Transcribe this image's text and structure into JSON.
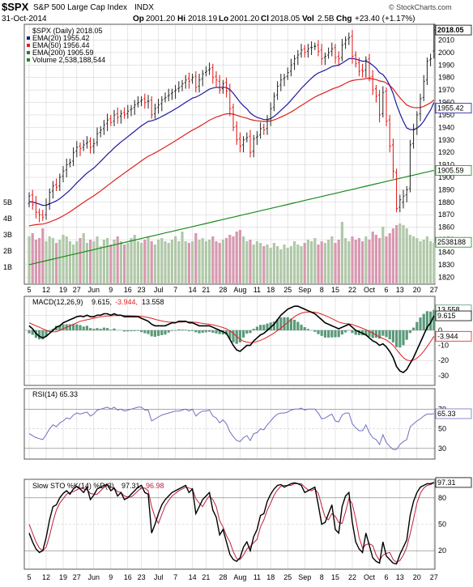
{
  "header": {
    "symbol": "$SPX",
    "name": "S&P 500 Large Cap Index",
    "exchange": "INDX",
    "date": "31-Oct-2014",
    "open_label": "Op",
    "open": "2001.20",
    "high_label": "Hi",
    "high": "2018.19",
    "low_label": "Lo",
    "low": "2001.20",
    "close_label": "Cl",
    "close": "2018.05",
    "vol_label": "Vol",
    "vol": "2.5B",
    "chg_label": "Chg",
    "chg": "+23.40 (+1.17%)",
    "brand": "© StockCharts.com"
  },
  "colors": {
    "up_bar": "#222222",
    "down_bar": "#e01010",
    "ema20": "#1a1aa0",
    "ema50": "#e02020",
    "ema200": "#1a8a1a",
    "vol_up": "#b0c8a8",
    "vol_down": "#d898b0",
    "hist": "#5a9a7a",
    "panel_border": "#555555",
    "grid": "#cccccc",
    "stoch_d": "#c02040",
    "rsi_line": "#7070c0"
  },
  "x_ticks": [
    "5",
    "12",
    "19",
    "27",
    "Jun",
    "9",
    "16",
    "23",
    "Jul",
    "7",
    "14",
    "21",
    "28",
    "Aug",
    "11",
    "18",
    "25",
    "Sep",
    "8",
    "15",
    "22",
    "Oct",
    "6",
    "13",
    "20",
    "27"
  ],
  "chart_data": [
    {
      "type": "ohlc",
      "title": "$SPX (Daily) 2018.05",
      "legend": [
        {
          "name": "EMA(20) 1955.42",
          "color": "#1a1aa0"
        },
        {
          "name": "EMA(50) 1956.44",
          "color": "#e02020"
        },
        {
          "name": "EMA(200) 1905.59",
          "color": "#1a8a1a"
        },
        {
          "name": "Volume 2,538,188,544",
          "color": "#1a8a1a"
        }
      ],
      "ylim": [
        1815,
        2022
      ],
      "yticks": [
        1820,
        1830,
        1840,
        1850,
        1860,
        1870,
        1880,
        1890,
        1900,
        1910,
        1920,
        1930,
        1940,
        1950,
        1960,
        1970,
        1980,
        1990,
        2000,
        2010
      ],
      "last_labels": [
        {
          "value": 2018.05,
          "text": "2018.05"
        },
        {
          "value": 1955.42,
          "text": "1955.42"
        },
        {
          "value": 1905.59,
          "text": "1905.59"
        }
      ],
      "close": [
        1885,
        1878,
        1872,
        1870,
        1868,
        1878,
        1888,
        1893,
        1892,
        1900,
        1905,
        1910,
        1912,
        1920,
        1924,
        1923,
        1926,
        1928,
        1924,
        1927,
        1935,
        1938,
        1942,
        1946,
        1944,
        1950,
        1948,
        1951,
        1950,
        1953,
        1955,
        1958,
        1960,
        1962,
        1960,
        1961,
        1950,
        1955,
        1958,
        1962,
        1964,
        1966,
        1968,
        1970,
        1972,
        1975,
        1978,
        1977,
        1980,
        1972,
        1978,
        1983,
        1985,
        1987,
        1980,
        1978,
        1970,
        1975,
        1969,
        1955,
        1940,
        1930,
        1925,
        1930,
        1932,
        1920,
        1931,
        1933,
        1939,
        1938,
        1946,
        1955,
        1965,
        1973,
        1978,
        1980,
        1984,
        1990,
        1995,
        1998,
        2002,
        2000,
        2003,
        2004,
        2005,
        2001,
        1995,
        1997,
        2000,
        2003,
        1996,
        1995,
        2006,
        2010,
        2012,
        1997,
        1991,
        1985,
        1985,
        1994,
        1980,
        1970,
        1965,
        1950,
        1968,
        1945,
        1925,
        1905,
        1875,
        1882,
        1885,
        1890,
        1926,
        1938,
        1950,
        1963,
        1977,
        1993,
        1995,
        2018.05
      ],
      "open": [
        1879,
        1886,
        1880,
        1872,
        1870,
        1870,
        1879,
        1889,
        1894,
        1893,
        1901,
        1906,
        1911,
        1913,
        1921,
        1925,
        1924,
        1927,
        1929,
        1925,
        1928,
        1936,
        1939,
        1943,
        1947,
        1945,
        1951,
        1949,
        1952,
        1951,
        1954,
        1956,
        1959,
        1961,
        1963,
        1961,
        1962,
        1951,
        1956,
        1959,
        1963,
        1965,
        1967,
        1969,
        1971,
        1973,
        1976,
        1979,
        1978,
        1981,
        1973,
        1979,
        1984,
        1986,
        1988,
        1981,
        1977,
        1971,
        1976,
        1970,
        1956,
        1941,
        1931,
        1926,
        1931,
        1933,
        1921,
        1932,
        1934,
        1940,
        1939,
        1947,
        1956,
        1966,
        1974,
        1979,
        1981,
        1985,
        1991,
        1996,
        1999,
        2003,
        2001,
        2004,
        2005,
        2006,
        2002,
        1996,
        1998,
        2001,
        2004,
        1997,
        1996,
        2007,
        2011,
        2013,
        1998,
        1992,
        1986,
        1986,
        1995,
        1981,
        1971,
        1966,
        1951,
        1969,
        1946,
        1926,
        1904,
        1876,
        1880,
        1886,
        1891,
        1927,
        1939,
        1951,
        1964,
        1978,
        1994,
        2001.2
      ],
      "volume_b": [
        2.9,
        3.1,
        2.7,
        2.8,
        3.4,
        2.6,
        2.9,
        2.8,
        2.5,
        2.7,
        3.0,
        2.9,
        2.6,
        2.4,
        2.6,
        2.8,
        3.1,
        2.5,
        2.7,
        2.6,
        2.9,
        2.3,
        2.7,
        2.8,
        2.4,
        2.7,
        2.9,
        2.6,
        2.4,
        2.5,
        2.8,
        3.0,
        2.6,
        2.5,
        2.7,
        2.9,
        2.6,
        2.4,
        2.7,
        2.8,
        2.6,
        2.5,
        2.7,
        2.9,
        2.6,
        3.2,
        2.6,
        2.5,
        2.6,
        3.1,
        2.7,
        2.8,
        2.6,
        2.7,
        2.9,
        2.6,
        2.5,
        2.7,
        2.8,
        3.0,
        2.9,
        3.2,
        3.3,
        2.9,
        2.6,
        2.7,
        2.4,
        2.6,
        2.5,
        2.3,
        2.4,
        2.2,
        2.5,
        2.3,
        2.1,
        2.4,
        2.2,
        2.3,
        2.6,
        2.4,
        2.3,
        2.5,
        2.7,
        2.6,
        2.8,
        2.4,
        2.6,
        2.5,
        2.7,
        2.9,
        2.5,
        2.7,
        3.8,
        2.8,
        2.6,
        2.9,
        2.7,
        2.8,
        2.6,
        2.9,
        2.7,
        3.2,
        3.0,
        2.8,
        3.5,
        2.9,
        3.1,
        3.4,
        3.6,
        3.7,
        3.6,
        3.4,
        3.0,
        2.9,
        2.8,
        2.6,
        2.7,
        2.9,
        2.6,
        2.5
      ],
      "vol_yticks": [
        {
          "v": 1,
          "t": "1B"
        },
        {
          "v": 2,
          "t": "2B"
        },
        {
          "v": 3,
          "t": "3B"
        },
        {
          "v": 4,
          "t": "4B"
        },
        {
          "v": 5,
          "t": "5B"
        }
      ],
      "vol_last_text": "2538188"
    },
    {
      "type": "line",
      "title": "MACD(12,26,9) 9.615, -3.944, 13.558",
      "title_parts": {
        "label": "MACD(12,26,9)",
        "macd": "9.615,",
        "signal": "-3.944,",
        "hist": "13.558"
      },
      "ylim": [
        -36,
        22
      ],
      "yticks": [
        {
          "v": 10,
          "t": "10"
        },
        {
          "v": 0,
          "t": "0"
        },
        {
          "v": -10,
          "t": "-10"
        },
        {
          "v": -20,
          "t": "-20"
        },
        {
          "v": -30,
          "t": "-30"
        }
      ],
      "last_labels": [
        {
          "value": 13.558,
          "text": "13.558"
        },
        {
          "value": 9.615,
          "text": "9.615"
        },
        {
          "value": -3.944,
          "text": "-3.944"
        }
      ],
      "macd": [
        3,
        1,
        -2,
        -4,
        -5,
        -4,
        -2,
        0,
        2,
        3,
        5,
        6,
        7,
        8,
        9,
        9.5,
        9,
        10,
        9,
        9,
        10,
        10,
        11,
        11,
        10,
        11,
        10,
        10,
        9,
        9,
        9,
        9,
        9,
        8,
        7,
        6,
        4,
        3,
        3,
        3,
        3,
        4,
        5,
        5,
        6,
        6,
        6,
        5,
        5,
        4,
        3,
        3,
        3,
        3,
        2,
        1,
        0,
        -1,
        -2,
        -6,
        -10,
        -13,
        -14,
        -12,
        -10,
        -10,
        -7,
        -5,
        -3,
        -2,
        0,
        2,
        4,
        7,
        10,
        12,
        14,
        15,
        16,
        16,
        15,
        14,
        13,
        12,
        11,
        9,
        7,
        5,
        4,
        3,
        2,
        1,
        2,
        3,
        4,
        2,
        0,
        -1,
        -2,
        -3,
        -5,
        -7,
        -8,
        -10,
        -9,
        -11,
        -14,
        -18,
        -24,
        -27,
        -28,
        -26,
        -22,
        -18,
        -13,
        -8,
        -3,
        2,
        5,
        9.615
      ],
      "signal": [
        5,
        4,
        3,
        2,
        1,
        0,
        -1,
        -1,
        -1,
        0,
        1,
        2,
        3,
        4,
        5,
        6,
        6.5,
        7,
        7.5,
        8,
        8.5,
        9,
        9.2,
        9.5,
        9.6,
        9.8,
        9.8,
        9.9,
        9.8,
        9.7,
        9.6,
        9.5,
        9.4,
        9.2,
        8.9,
        8.5,
        8,
        7.3,
        6.7,
        6.2,
        5.8,
        5.5,
        5.4,
        5.3,
        5.4,
        5.5,
        5.6,
        5.6,
        5.5,
        5.3,
        5,
        4.6,
        4.3,
        4,
        3.6,
        3.1,
        2.5,
        1.8,
        1,
        -0.3,
        -2,
        -4,
        -6,
        -7.2,
        -7.8,
        -8.2,
        -8,
        -7.4,
        -6.6,
        -5.7,
        -4.5,
        -3.2,
        -1.8,
        -0.2,
        1.5,
        3.3,
        5.3,
        7.2,
        9,
        10.4,
        11.3,
        11.9,
        12.1,
        12.1,
        12,
        11.5,
        10.7,
        9.8,
        8.8,
        7.7,
        6.6,
        5.5,
        4.8,
        4.4,
        4.3,
        3.8,
        3,
        2.2,
        1.3,
        0.4,
        -0.7,
        -1.9,
        -3.1,
        -4.5,
        -5.4,
        -6.5,
        -8,
        -10,
        -12.8,
        -15.6,
        -18.1,
        -19.7,
        -20.2,
        -19.8,
        -18.5,
        -16.5,
        -13.9,
        -10.7,
        -7.5,
        -3.944
      ]
    },
    {
      "type": "line",
      "title": "RSI(14) 65.33",
      "ylim": [
        20,
        90
      ],
      "yticks": [
        {
          "v": 70,
          "t": "70"
        },
        {
          "v": 50,
          "t": "50"
        },
        {
          "v": 30,
          "t": "30"
        }
      ],
      "last_labels": [
        {
          "value": 65.33,
          "text": "65.33"
        }
      ],
      "values": [
        45,
        43,
        41,
        40,
        39,
        44,
        50,
        54,
        52,
        56,
        58,
        61,
        60,
        64,
        66,
        65,
        66,
        67,
        63,
        65,
        69,
        70,
        71,
        72,
        70,
        72,
        69,
        70,
        68,
        69,
        70,
        71,
        72,
        72,
        69,
        69,
        58,
        60,
        62,
        64,
        65,
        66,
        67,
        68,
        68,
        69,
        70,
        68,
        70,
        63,
        66,
        68,
        68,
        69,
        63,
        61,
        56,
        59,
        55,
        47,
        42,
        38,
        37,
        41,
        43,
        38,
        45,
        46,
        50,
        49,
        54,
        58,
        62,
        65,
        66,
        66,
        67,
        69,
        70,
        70,
        71,
        69,
        70,
        70,
        70,
        66,
        60,
        61,
        63,
        65,
        58,
        57,
        64,
        66,
        66,
        55,
        51,
        48,
        48,
        54,
        46,
        41,
        39,
        34,
        44,
        36,
        32,
        29,
        29,
        34,
        37,
        39,
        52,
        55,
        58,
        60,
        63,
        65,
        65,
        65.33
      ]
    },
    {
      "type": "line",
      "title": "Slow STO %K(14) %D(3) 97.31, 96.98",
      "title_parts": {
        "label": "Slow STO %K(14) %D(3)",
        "k": "97.31,",
        "d": "96.98"
      },
      "ylim": [
        0,
        100
      ],
      "yticks": [
        {
          "v": 80,
          "t": "80"
        },
        {
          "v": 50,
          "t": "50"
        },
        {
          "v": 20,
          "t": "20"
        }
      ],
      "last_labels": [
        {
          "value": 97.31,
          "text": "97.31"
        }
      ],
      "k": [
        40,
        30,
        22,
        18,
        20,
        35,
        55,
        70,
        72,
        80,
        85,
        88,
        84,
        90,
        93,
        90,
        86,
        92,
        78,
        83,
        90,
        92,
        94,
        95,
        88,
        91,
        82,
        86,
        78,
        80,
        84,
        88,
        92,
        94,
        86,
        84,
        40,
        50,
        62,
        72,
        78,
        82,
        86,
        88,
        90,
        92,
        94,
        86,
        90,
        62,
        70,
        78,
        82,
        86,
        66,
        58,
        38,
        44,
        30,
        16,
        10,
        8,
        12,
        24,
        30,
        20,
        36,
        44,
        60,
        62,
        76,
        84,
        90,
        94,
        95,
        92,
        94,
        96,
        97,
        96,
        94,
        86,
        88,
        90,
        92,
        72,
        50,
        52,
        62,
        72,
        44,
        40,
        70,
        82,
        86,
        52,
        30,
        22,
        18,
        40,
        26,
        12,
        8,
        6,
        30,
        14,
        10,
        6,
        5,
        16,
        24,
        32,
        60,
        76,
        86,
        92,
        94,
        96,
        96,
        97.31
      ],
      "d": [
        50,
        40,
        30,
        23,
        20,
        24,
        37,
        53,
        66,
        74,
        79,
        84,
        86,
        87,
        89,
        91,
        90,
        89,
        85,
        84,
        84,
        88,
        92,
        94,
        92,
        91,
        87,
        86,
        82,
        81,
        81,
        84,
        88,
        91,
        91,
        88,
        70,
        58,
        51,
        61,
        71,
        77,
        82,
        85,
        88,
        90,
        92,
        91,
        90,
        79,
        74,
        70,
        77,
        82,
        78,
        70,
        54,
        47,
        37,
        30,
        19,
        11,
        10,
        15,
        22,
        25,
        29,
        33,
        47,
        55,
        66,
        74,
        83,
        89,
        93,
        94,
        94,
        94,
        96,
        96,
        96,
        92,
        89,
        88,
        90,
        85,
        71,
        58,
        55,
        62,
        59,
        52,
        51,
        64,
        79,
        73,
        56,
        35,
        23,
        27,
        28,
        26,
        15,
        9,
        15,
        17,
        18,
        10,
        7,
        9,
        15,
        24,
        39,
        56,
        74,
        85,
        91,
        94,
        95,
        96.98
      ]
    }
  ]
}
